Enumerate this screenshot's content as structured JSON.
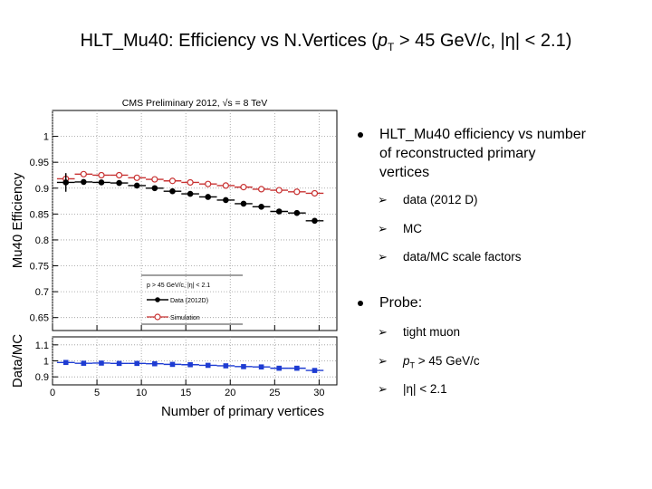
{
  "slide": {
    "title_pre": "HLT_Mu40: Efficiency vs N.Vertices (",
    "title_p": "p",
    "title_sub": "T",
    "title_post": " > 45 GeV/c, |η| < 2.1)"
  },
  "bullets": {
    "main1": "HLT_Mu40 efficiency vs number of reconstructed primary vertices",
    "sub1": [
      "data  (2012 D)",
      "MC",
      "data/MC scale factors"
    ],
    "main2": "Probe:",
    "sub2_a": "tight muon",
    "sub2_b_p": "p",
    "sub2_b_sub": "T",
    "sub2_b_rest": " > 45 GeV/c",
    "sub2_c": "|η| < 2.1",
    "arrow": "➢"
  },
  "chart_data": {
    "type": "scatter",
    "header": "CMS Preliminary 2012,  √s = 8 TeV",
    "top_panel": {
      "ylabel": "Mu40 Efficiency",
      "ylim": [
        0.625,
        1.05
      ],
      "yticks": [
        "0.65",
        "0.7",
        "0.75",
        "0.8",
        "0.85",
        "0.9",
        "0.95",
        "1"
      ],
      "series": [
        {
          "name": "Data (2012D)",
          "color": "#000000",
          "marker": "filled-circle",
          "x": [
            1.5,
            3.5,
            5.5,
            7.5,
            9.5,
            11.5,
            13.5,
            15.5,
            17.5,
            19.5,
            21.5,
            23.5,
            25.5,
            27.5,
            29.5
          ],
          "y": [
            0.911,
            0.912,
            0.911,
            0.91,
            0.905,
            0.9,
            0.894,
            0.889,
            0.883,
            0.877,
            0.87,
            0.864,
            0.855,
            0.852,
            0.837
          ],
          "yerr": [
            0.018,
            0.004,
            0.002,
            0.002,
            0.002,
            0.002,
            0.002,
            0.002,
            0.002,
            0.002,
            0.002,
            0.002,
            0.003,
            0.003,
            0.005
          ]
        },
        {
          "name": "Simulation",
          "color": "#c83232",
          "marker": "open-circle",
          "x": [
            1.5,
            3.5,
            5.5,
            7.5,
            9.5,
            11.5,
            13.5,
            15.5,
            17.5,
            19.5,
            21.5,
            23.5,
            25.5,
            27.5,
            29.5
          ],
          "y": [
            0.918,
            0.927,
            0.925,
            0.925,
            0.92,
            0.917,
            0.914,
            0.911,
            0.908,
            0.905,
            0.902,
            0.898,
            0.896,
            0.893,
            0.89
          ],
          "yerr": [
            0.01,
            0.002,
            0.002,
            0.002,
            0.002,
            0.002,
            0.002,
            0.002,
            0.002,
            0.002,
            0.002,
            0.002,
            0.002,
            0.002,
            0.002
          ]
        }
      ],
      "legend": {
        "header": "p  > 45 GeV/c, |η| < 2.1",
        "placement": "bottom-left"
      }
    },
    "bottom_panel": {
      "ylabel": "Data/MC",
      "ylim": [
        0.85,
        1.15
      ],
      "yticks": [
        "0.9",
        "1",
        "1.1"
      ],
      "series": [
        {
          "name": "scale factor",
          "color": "#1e3cd2",
          "marker": "filled-square",
          "x": [
            1.5,
            3.5,
            5.5,
            7.5,
            9.5,
            11.5,
            13.5,
            15.5,
            17.5,
            19.5,
            21.5,
            23.5,
            25.5,
            27.5,
            29.5
          ],
          "y": [
            0.99,
            0.985,
            0.986,
            0.984,
            0.984,
            0.982,
            0.978,
            0.976,
            0.972,
            0.969,
            0.964,
            0.962,
            0.954,
            0.954,
            0.94
          ]
        }
      ]
    },
    "xlabel": "Number of primary vertices",
    "xlim": [
      0,
      32
    ],
    "xticks": [
      "0",
      "5",
      "10",
      "15",
      "20",
      "25",
      "30"
    ],
    "grid": true
  }
}
